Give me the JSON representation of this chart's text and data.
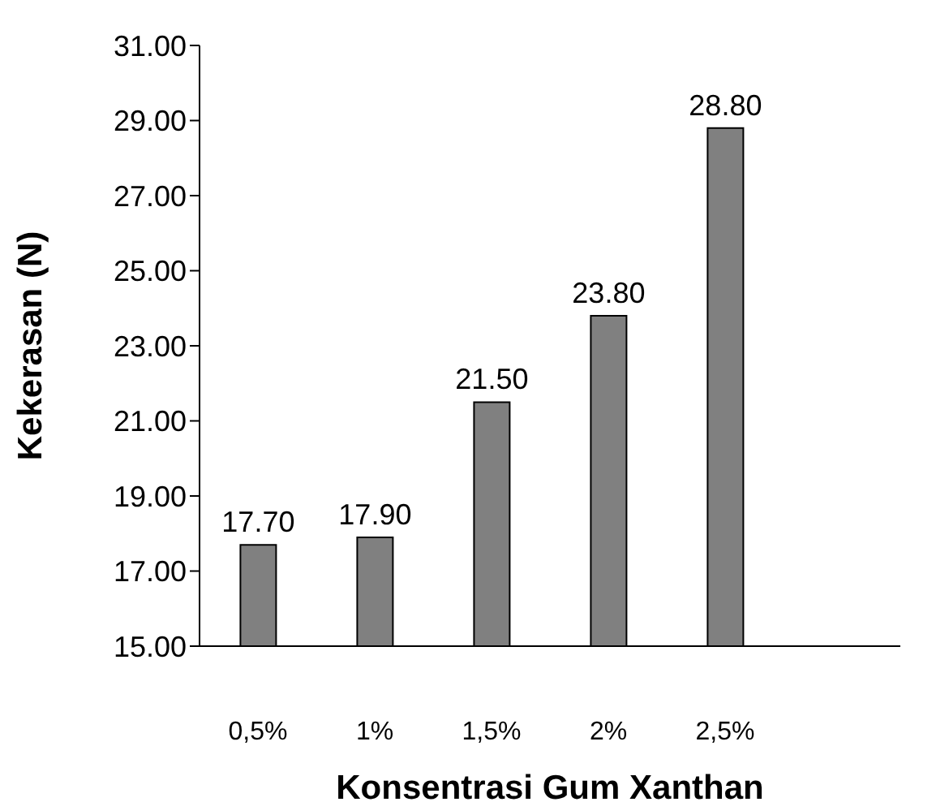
{
  "chart_data": {
    "type": "bar",
    "xlabel": "Konsentrasi Gum Xanthan",
    "ylabel": "Kekerasan (N)",
    "categories": [
      "0,5%",
      "1%",
      "1,5%",
      "2%",
      "2,5%",
      null
    ],
    "values": [
      17.7,
      17.9,
      21.5,
      23.8,
      28.8,
      null
    ],
    "value_labels": [
      "17.70",
      "17.90",
      "21.50",
      "23.80",
      "28.80",
      null
    ],
    "color": "#808080",
    "ylim": [
      15,
      31
    ],
    "yticks": [
      {
        "value": 15,
        "label": "15.00"
      },
      {
        "value": 17,
        "label": "17.00"
      },
      {
        "value": 19,
        "label": "19.00"
      },
      {
        "value": 21,
        "label": "21.00"
      },
      {
        "value": 23,
        "label": "23.00"
      },
      {
        "value": 25,
        "label": "25.00"
      },
      {
        "value": 27,
        "label": "27.00"
      },
      {
        "value": 29,
        "label": "29.00"
      },
      {
        "value": 31,
        "label": "31.00"
      }
    ],
    "grid": false
  }
}
